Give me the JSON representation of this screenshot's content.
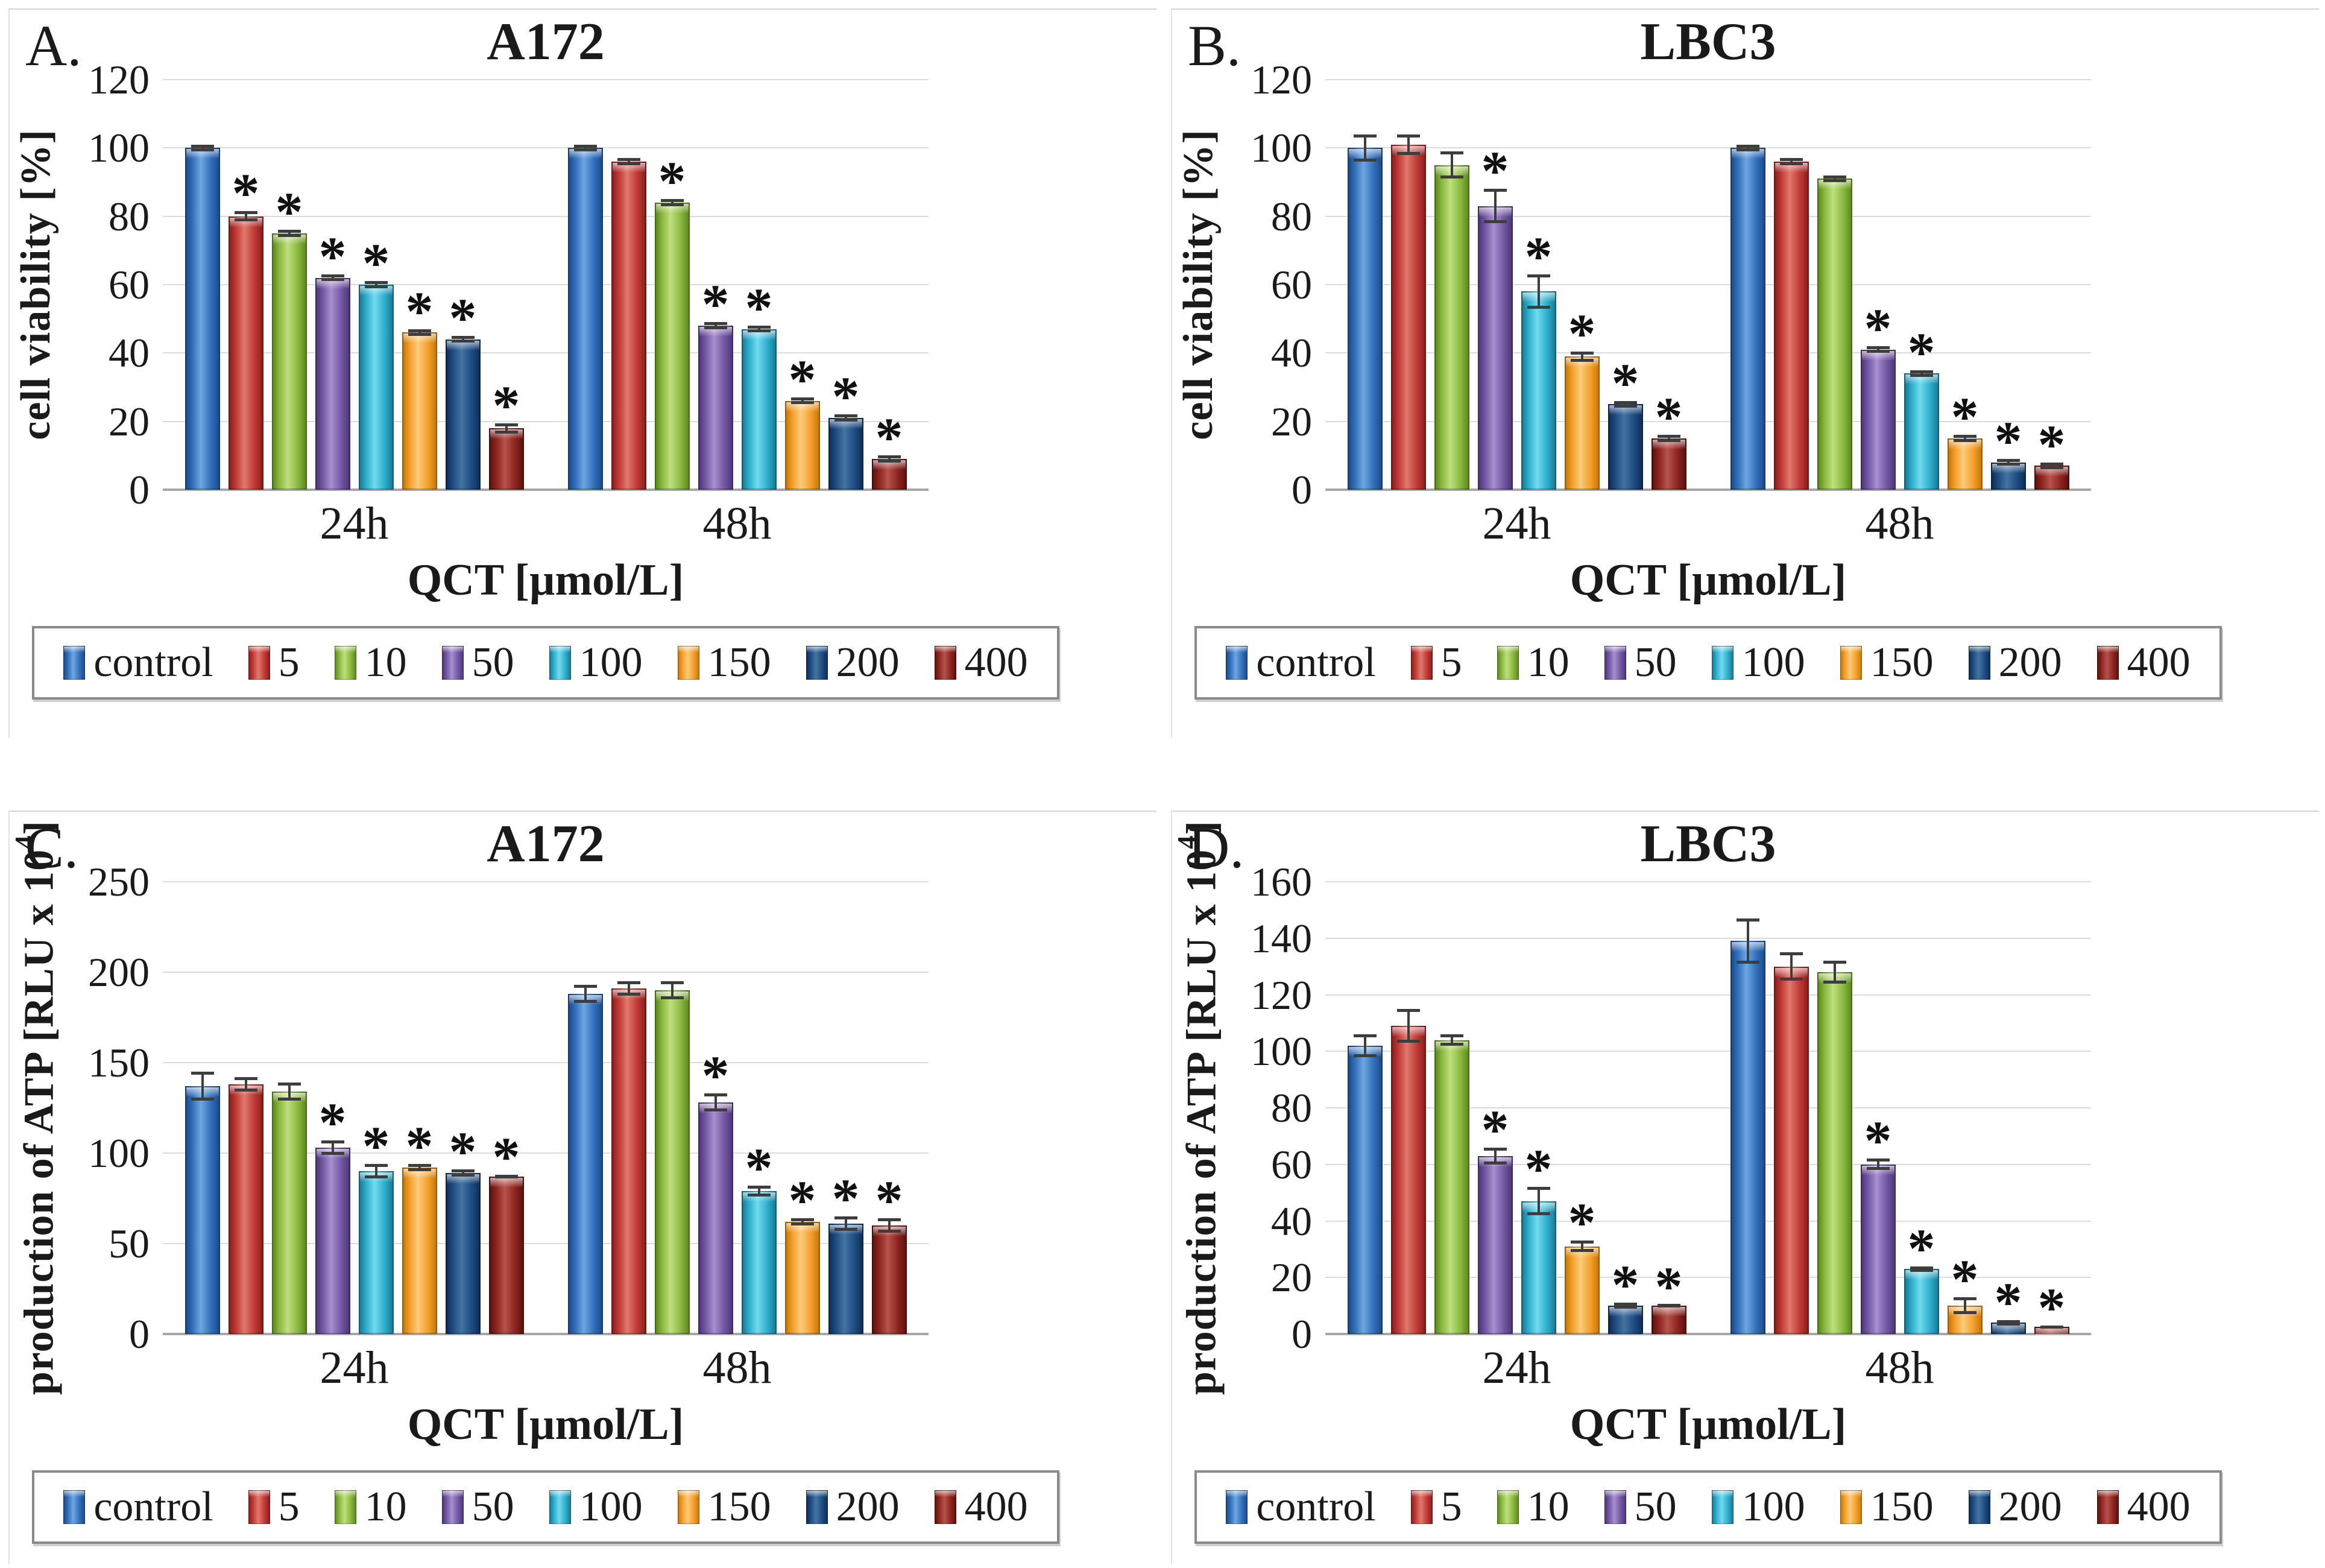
{
  "figure": {
    "description_visible_text_only": "Four grouped bar charts labeled A-D",
    "significance_marker": "*"
  },
  "chart_data": {
    "type": "bar",
    "grid": true,
    "legend_position": "bottom",
    "categories": [
      "24h",
      "48h"
    ],
    "series_labels": [
      "control",
      "5",
      "10",
      "50",
      "100",
      "150",
      "200",
      "400"
    ],
    "series": [
      {
        "label": "control",
        "color_base": "#3371BC",
        "color_light": "#6EA6E2",
        "color_dark": "#1C4C8C"
      },
      {
        "label": "5",
        "color_base": "#C23B38",
        "color_light": "#E0796E",
        "color_dark": "#8C1F1D"
      },
      {
        "label": "10",
        "color_base": "#8BBA40",
        "color_light": "#BFDF7E",
        "color_dark": "#5F8C1E"
      },
      {
        "label": "50",
        "color_base": "#7459A5",
        "color_light": "#A78FD0",
        "color_dark": "#4E3779"
      },
      {
        "label": "100",
        "color_base": "#2FB0CE",
        "color_light": "#72DAEF",
        "color_dark": "#1A7C97"
      },
      {
        "label": "150",
        "color_base": "#F5A02C",
        "color_light": "#FBCB7B",
        "color_dark": "#C87909"
      },
      {
        "label": "200",
        "color_base": "#1E4E85",
        "color_light": "#45739F",
        "color_dark": "#0F2F58"
      },
      {
        "label": "400",
        "color_base": "#8F2621",
        "color_light": "#B5534B",
        "color_dark": "#5F110F"
      }
    ],
    "charts": [
      {
        "panel_letter": "A.",
        "title": "A172",
        "y_label": "cell viability  [%]",
        "y_label_sup": "",
        "y_label_suffix": "",
        "x_label": "QCT [µmol/L]",
        "y_max": 120,
        "y_ticks": [
          0,
          20,
          40,
          60,
          80,
          100,
          120
        ],
        "groups": [
          {
            "category": "24h",
            "values": [
              100,
              80,
              75,
              62,
              60,
              46,
              44,
              18
            ],
            "errors": [
              1,
              1.5,
              1,
              1,
              1,
              1,
              1,
              1.5
            ],
            "significant": [
              0,
              1,
              1,
              1,
              1,
              1,
              1,
              1
            ]
          },
          {
            "category": "48h",
            "values": [
              100,
              96,
              84,
              48,
              47,
              26,
              21,
              9
            ],
            "errors": [
              1,
              1,
              1,
              1,
              1,
              1,
              1,
              1
            ],
            "significant": [
              0,
              0,
              1,
              1,
              1,
              1,
              1,
              1
            ]
          }
        ]
      },
      {
        "panel_letter": "B.",
        "title": "LBC3",
        "y_label": "cell viability  [%]",
        "y_label_sup": "",
        "y_label_suffix": "",
        "x_label": "QCT [µmol/L]",
        "y_max": 120,
        "y_ticks": [
          0,
          20,
          40,
          60,
          80,
          100,
          120
        ],
        "groups": [
          {
            "category": "24h",
            "values": [
              100,
              101,
              95,
              83,
              58,
              39,
              25,
              15
            ],
            "errors": [
              4,
              3,
              4,
              5,
              5,
              1.5,
              1,
              1
            ],
            "significant": [
              0,
              0,
              0,
              1,
              1,
              1,
              1,
              1
            ]
          },
          {
            "category": "48h",
            "values": [
              100,
              96,
              91,
              41,
              34,
              15,
              8,
              7
            ],
            "errors": [
              1,
              1,
              1,
              1,
              1,
              1,
              1,
              1
            ],
            "significant": [
              0,
              0,
              0,
              1,
              1,
              1,
              1,
              1
            ]
          }
        ]
      },
      {
        "panel_letter": "C.",
        "title": "A172",
        "y_label": "production  of ATP [RLU x 10",
        "y_label_sup": "4",
        "y_label_suffix": "]",
        "x_label": "QCT [µmol/L]",
        "y_max": 250,
        "y_ticks": [
          0,
          50,
          100,
          150,
          200,
          250
        ],
        "groups": [
          {
            "category": "24h",
            "values": [
              137,
              138,
              134,
              103,
              90,
              92,
              89,
              87
            ],
            "errors": [
              8,
              4,
              5,
              4,
              4,
              2,
              2,
              1
            ],
            "significant": [
              0,
              0,
              0,
              1,
              1,
              1,
              1,
              1
            ]
          },
          {
            "category": "48h",
            "values": [
              188,
              191,
              190,
              128,
              79,
              62,
              61,
              60
            ],
            "errors": [
              5,
              4,
              5,
              5,
              3,
              2,
              4,
              4
            ],
            "significant": [
              0,
              0,
              0,
              1,
              1,
              1,
              1,
              1
            ]
          }
        ]
      },
      {
        "panel_letter": "D.",
        "title": "LBC3",
        "y_label": "production  of ATP [RLU x 10",
        "y_label_sup": "4",
        "y_label_suffix": "]",
        "x_label": "QCT [µmol/L]",
        "y_max": 160,
        "y_ticks": [
          0,
          20,
          40,
          60,
          80,
          100,
          120,
          140,
          160
        ],
        "groups": [
          {
            "category": "24h",
            "values": [
              102,
              109,
              104,
              63,
              47,
              31,
              10,
              10
            ],
            "errors": [
              4,
              6,
              2,
              3,
              5,
              2,
              1,
              0.5
            ],
            "significant": [
              0,
              0,
              0,
              1,
              1,
              1,
              1,
              1
            ]
          },
          {
            "category": "48h",
            "values": [
              139,
              130,
              128,
              60,
              23,
              10,
              4,
              2.5
            ],
            "errors": [
              8,
              5,
              4,
              2,
              1,
              3,
              1,
              0.5
            ],
            "significant": [
              0,
              0,
              0,
              1,
              1,
              1,
              1,
              1
            ]
          }
        ]
      }
    ]
  }
}
